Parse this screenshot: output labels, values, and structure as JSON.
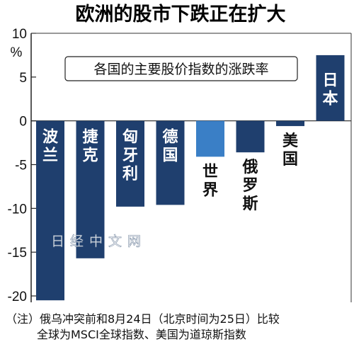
{
  "chart_data": {
    "type": "bar",
    "title": "欧洲的股市下跌正在扩大",
    "subtitle": "各国的主要股价指数的涨跌率",
    "ylabel": "%",
    "ylim": [
      -21,
      10
    ],
    "yticks": [
      10,
      5,
      0,
      -5,
      -10,
      -15,
      -20
    ],
    "grid": false,
    "categories": [
      "波兰",
      "捷克",
      "匈牙利",
      "德国",
      "世界",
      "俄罗斯",
      "美国",
      "日本"
    ],
    "values": [
      -20.5,
      -15.7,
      -9.8,
      -9.6,
      -4.1,
      -3.6,
      -0.6,
      7.5
    ],
    "colors": {
      "dark": "#1f3f6e",
      "light": "#3a7fc6",
      "label_on_bar": "#ffffff",
      "label_off_bar": "#111111"
    },
    "highlight_category": "世界",
    "watermark": "日经中文网"
  },
  "note": {
    "line1": "（注）俄乌冲突前和8月24日（北京时间为25日）比较",
    "line2": "全球为MSCI全球指数、美国为道琼斯指数"
  }
}
